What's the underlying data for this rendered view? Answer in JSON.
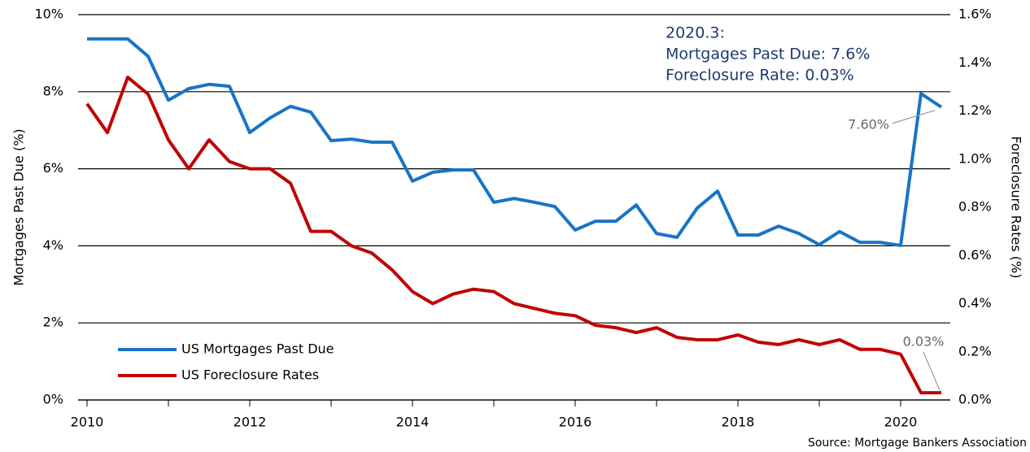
{
  "chart_data": {
    "type": "line",
    "ylabel": "Mortgages Past Due (%)",
    "y2label": "Foreclosure Rates (%)",
    "annotation": [
      "2020.3:",
      "Mortgages Past Due: 7.6%",
      "Foreclosure Rate: 0.03%"
    ],
    "source": "Source: Mortgage Bankers Association",
    "legend": "lower left",
    "grid": true,
    "x": [
      2010,
      2010.25,
      2010.5,
      2010.75,
      2011,
      2011.25,
      2011.5,
      2011.75,
      2012,
      2012.25,
      2012.5,
      2012.75,
      2013,
      2013.25,
      2013.5,
      2013.75,
      2014,
      2014.25,
      2014.5,
      2014.75,
      2015,
      2015.25,
      2015.5,
      2015.75,
      2016,
      2016.25,
      2016.5,
      2016.75,
      2017,
      2017.25,
      2017.5,
      2017.75,
      2018,
      2018.25,
      2018.5,
      2018.75,
      2019,
      2019.25,
      2019.5,
      2019.75,
      2020,
      2020.25,
      2020.5
    ],
    "xlim": [
      2009.89,
      2020.61
    ],
    "xticks": [
      2010,
      2012,
      2014,
      2016,
      2018,
      2020
    ],
    "xminorticks": [
      2011,
      2013,
      2015,
      2017,
      2019
    ],
    "ylim": [
      0,
      10
    ],
    "yticks": [
      {
        "value": 0,
        "label": "0%"
      },
      {
        "value": 2,
        "label": "2%"
      },
      {
        "value": 4,
        "label": "4%"
      },
      {
        "value": 6,
        "label": "6%"
      },
      {
        "value": 8,
        "label": "8%"
      },
      {
        "value": 10,
        "label": "10%"
      }
    ],
    "y2lim": [
      0,
      1.6
    ],
    "y2ticks": [
      {
        "value": 0,
        "label": "0.0%"
      },
      {
        "value": 0.2,
        "label": "0.2%"
      },
      {
        "value": 0.4,
        "label": "0.4%"
      },
      {
        "value": 0.6,
        "label": "0.6%"
      },
      {
        "value": 0.8,
        "label": "0.8%"
      },
      {
        "value": 1.0,
        "label": "1.0%"
      },
      {
        "value": 1.2,
        "label": "1.2%"
      },
      {
        "value": 1.4,
        "label": "1.4%"
      },
      {
        "value": 1.6,
        "label": "1.6%"
      }
    ],
    "series": [
      {
        "name": "US Mortgages Past Due",
        "color": "#1874c6",
        "values": [
          9.37,
          9.37,
          9.37,
          8.92,
          7.78,
          8.08,
          8.19,
          8.14,
          6.94,
          7.32,
          7.62,
          7.47,
          6.73,
          6.77,
          6.69,
          6.69,
          5.68,
          5.91,
          5.97,
          5.97,
          5.13,
          5.23,
          5.13,
          5.02,
          4.41,
          4.64,
          4.64,
          5.06,
          4.32,
          4.22,
          4.98,
          5.42,
          4.28,
          4.28,
          4.51,
          4.32,
          4.03,
          4.37,
          4.09,
          4.09,
          4.01,
          7.95,
          7.6
        ],
        "value_labels": [
          null,
          null,
          null,
          null,
          null,
          null,
          null,
          null,
          null,
          null,
          null,
          null,
          null,
          null,
          null,
          null,
          null,
          null,
          null,
          null,
          null,
          null,
          null,
          null,
          null,
          null,
          null,
          null,
          null,
          null,
          null,
          null,
          null,
          null,
          null,
          null,
          null,
          null,
          null,
          null,
          null,
          null,
          "7.60%"
        ]
      },
      {
        "name": "US Foreclosure Rates",
        "color": "#c00000",
        "axis": "y2",
        "values": [
          1.23,
          1.11,
          1.34,
          1.27,
          1.08,
          0.96,
          1.08,
          0.99,
          0.96,
          0.96,
          0.9,
          0.7,
          0.7,
          0.64,
          0.61,
          0.54,
          0.45,
          0.4,
          0.44,
          0.46,
          0.45,
          0.4,
          0.38,
          0.36,
          0.35,
          0.31,
          0.3,
          0.28,
          0.3,
          0.26,
          0.25,
          0.25,
          0.27,
          0.24,
          0.23,
          0.25,
          0.23,
          0.25,
          0.21,
          0.21,
          0.19,
          0.03,
          0.03
        ],
        "value_labels": [
          null,
          null,
          null,
          null,
          null,
          null,
          null,
          null,
          null,
          null,
          null,
          null,
          null,
          null,
          null,
          null,
          null,
          null,
          null,
          null,
          null,
          null,
          null,
          null,
          null,
          null,
          null,
          null,
          null,
          null,
          null,
          null,
          null,
          null,
          null,
          null,
          null,
          null,
          null,
          null,
          null,
          null,
          "0.03%"
        ]
      }
    ]
  }
}
